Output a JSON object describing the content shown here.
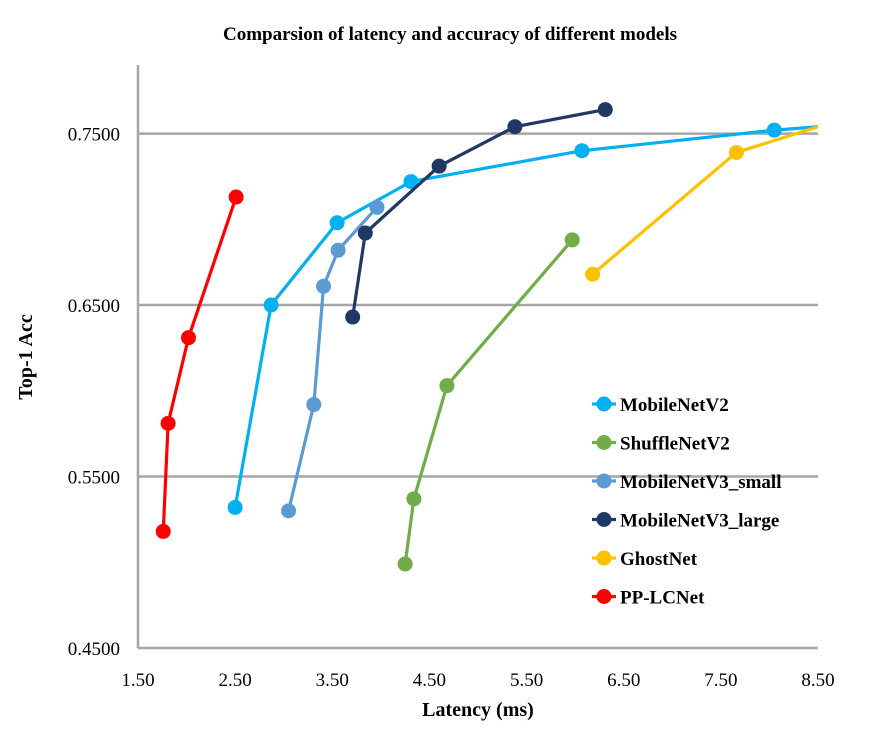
{
  "chart_data": {
    "type": "line",
    "title": "Comparsion of latency and accuracy of different models",
    "xlabel": "Latency (ms)",
    "ylabel": "Top-1 Acc",
    "xlim": [
      1.5,
      8.5
    ],
    "ylim": [
      0.45,
      0.79
    ],
    "x_ticks": [
      "1.50",
      "2.50",
      "3.50",
      "4.50",
      "5.50",
      "6.50",
      "7.50",
      "8.50"
    ],
    "y_ticks": [
      "0.4500",
      "0.5500",
      "0.6500",
      "0.7500"
    ],
    "grid": "horizontal",
    "legend_position": "right",
    "series": [
      {
        "name": "MobileNetV2",
        "color": "#00b0f0",
        "points": [
          [
            2.5,
            0.532
          ],
          [
            2.87,
            0.65
          ],
          [
            3.55,
            0.698
          ],
          [
            4.31,
            0.722
          ],
          [
            6.07,
            0.74
          ],
          [
            8.05,
            0.752
          ],
          [
            8.5,
            0.754
          ]
        ]
      },
      {
        "name": "ShuffleNetV2",
        "color": "#70ad47",
        "points": [
          [
            4.25,
            0.499
          ],
          [
            4.34,
            0.537
          ],
          [
            4.68,
            0.603
          ],
          [
            5.97,
            0.688
          ]
        ]
      },
      {
        "name": "MobileNetV3_small",
        "color": "#5b9bd5",
        "points": [
          [
            3.05,
            0.53
          ],
          [
            3.31,
            0.592
          ],
          [
            3.41,
            0.661
          ],
          [
            3.56,
            0.682
          ],
          [
            3.96,
            0.707
          ]
        ]
      },
      {
        "name": "MobileNetV3_large",
        "color": "#203864",
        "points": [
          [
            3.71,
            0.643
          ],
          [
            3.84,
            0.692
          ],
          [
            4.6,
            0.731
          ],
          [
            5.38,
            0.754
          ],
          [
            6.31,
            0.764
          ]
        ]
      },
      {
        "name": "GhostNet",
        "color": "#ffc000",
        "points": [
          [
            6.18,
            0.668
          ],
          [
            7.66,
            0.739
          ],
          [
            8.5,
            0.754
          ]
        ]
      },
      {
        "name": "PP-LCNet",
        "color": "#ff0000",
        "points": [
          [
            1.76,
            0.518
          ],
          [
            1.81,
            0.581
          ],
          [
            2.02,
            0.631
          ],
          [
            2.51,
            0.713
          ]
        ]
      }
    ]
  }
}
